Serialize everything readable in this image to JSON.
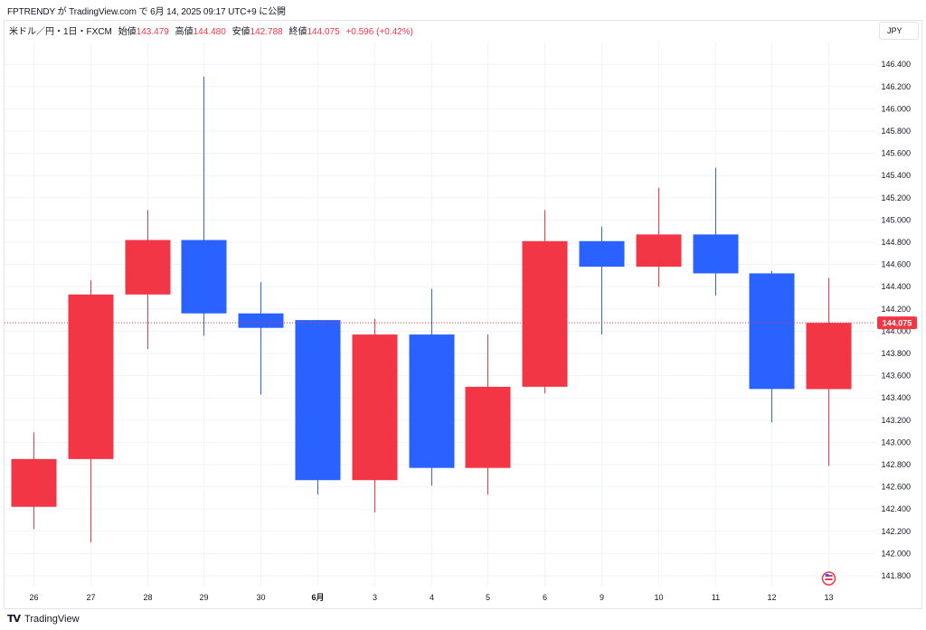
{
  "header": {
    "published_text": "FPTRENDY が TradingView.com で 6月 14, 2025 09:17 UTC+9 に公開"
  },
  "legend": {
    "symbol": "米ドル／円・1日・FXCM",
    "open_label": "始値",
    "open_value": "143.479",
    "high_label": "高値",
    "high_value": "144.480",
    "low_label": "安値",
    "low_value": "142.788",
    "close_label": "終値",
    "close_value": "144.075",
    "change": "+0.596 (+0.42%)"
  },
  "currency_button": "JPY",
  "footer": {
    "logo_mark": "TV",
    "logo_text": "TradingView"
  },
  "colors": {
    "up": "#f23645",
    "down": "#2962ff",
    "grid": "#f0f3fa",
    "price_line": "#f23645"
  },
  "chart_data": {
    "type": "candlestick",
    "ylim": [
      141.7,
      146.5
    ],
    "y_ticks": [
      "141.800",
      "142.000",
      "142.200",
      "142.400",
      "142.600",
      "142.800",
      "143.000",
      "143.200",
      "143.400",
      "143.600",
      "143.800",
      "144.000",
      "144.200",
      "144.400",
      "144.600",
      "144.800",
      "145.000",
      "145.200",
      "145.400",
      "145.600",
      "145.800",
      "146.000",
      "146.200",
      "146.400"
    ],
    "last_price": "144.075",
    "candles": [
      {
        "date": "26",
        "open": 142.42,
        "high": 143.09,
        "low": 142.22,
        "close": 142.85
      },
      {
        "date": "27",
        "open": 142.85,
        "high": 144.46,
        "low": 142.1,
        "close": 144.33
      },
      {
        "date": "28",
        "open": 144.33,
        "high": 145.09,
        "low": 143.84,
        "close": 144.82
      },
      {
        "date": "29",
        "open": 144.82,
        "high": 146.29,
        "low": 143.96,
        "close": 144.16
      },
      {
        "date": "30",
        "open": 144.16,
        "high": 144.44,
        "low": 143.43,
        "close": 144.03
      },
      {
        "date": "6月",
        "open": 144.1,
        "high": 144.1,
        "low": 142.53,
        "close": 142.66
      },
      {
        "date": "3",
        "open": 142.66,
        "high": 144.11,
        "low": 142.37,
        "close": 143.97
      },
      {
        "date": "4",
        "open": 143.97,
        "high": 144.38,
        "low": 142.61,
        "close": 142.77
      },
      {
        "date": "5",
        "open": 142.77,
        "high": 143.97,
        "low": 142.53,
        "close": 143.5
      },
      {
        "date": "6",
        "open": 143.5,
        "high": 145.09,
        "low": 143.44,
        "close": 144.81
      },
      {
        "date": "9",
        "open": 144.81,
        "high": 144.94,
        "low": 143.97,
        "close": 144.58
      },
      {
        "date": "10",
        "open": 144.58,
        "high": 145.29,
        "low": 144.4,
        "close": 144.87
      },
      {
        "date": "11",
        "open": 144.87,
        "high": 145.47,
        "low": 144.32,
        "close": 144.52
      },
      {
        "date": "12",
        "open": 144.52,
        "high": 144.54,
        "low": 143.18,
        "close": 143.48
      },
      {
        "date": "13",
        "open": 143.479,
        "high": 144.48,
        "low": 142.788,
        "close": 144.075
      }
    ]
  }
}
